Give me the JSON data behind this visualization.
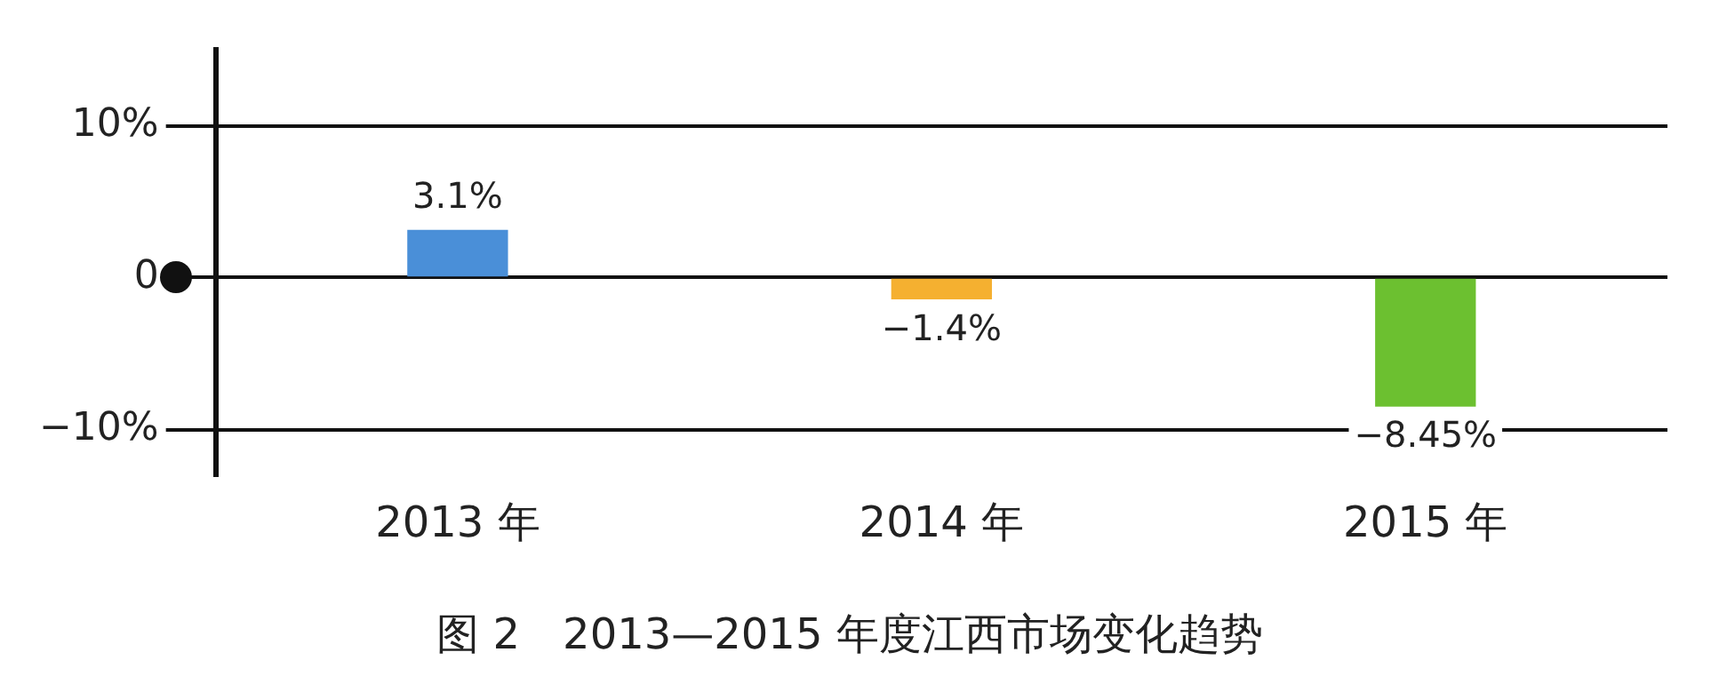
{
  "chart_data": {
    "type": "bar",
    "title": "图 2　2013—2015 年度江西市场变化趋势",
    "categories": [
      "2013 年",
      "2014 年",
      "2015 年"
    ],
    "values": [
      3.1,
      -1.4,
      -8.45
    ],
    "colors": [
      "#4a8fd8",
      "#f5b030",
      "#6cc030"
    ],
    "value_labels": [
      "3.1%",
      "−1.4%",
      "−8.45%"
    ],
    "ylim": [
      -13,
      15
    ],
    "yticks": [
      {
        "value": 10,
        "label": "10%"
      },
      {
        "value": 0,
        "label": "0"
      },
      {
        "value": -10,
        "label": "−10%"
      }
    ],
    "grid": "y"
  }
}
